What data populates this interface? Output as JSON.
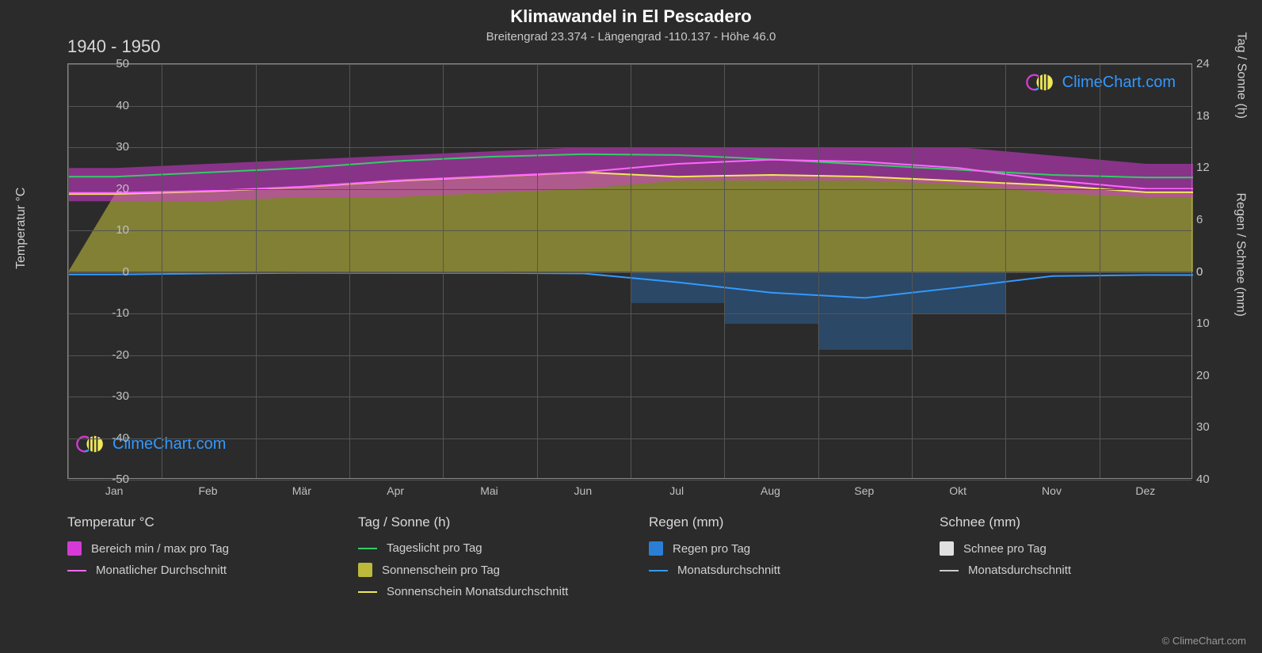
{
  "title": "Klimawandel in El Pescadero",
  "subtitle": "Breitengrad 23.374 - Längengrad -110.137 - Höhe 46.0",
  "period_label": "1940 - 1950",
  "copyright": "© ClimeChart.com",
  "watermark_text": "ClimeChart.com",
  "watermark_color": "#3399ff",
  "background_color": "#2b2b2b",
  "grid_color": "#555555",
  "text_color": "#d0d0d0",
  "chart": {
    "x_months": [
      "Jan",
      "Feb",
      "Mär",
      "Apr",
      "Mai",
      "Jun",
      "Jul",
      "Aug",
      "Sep",
      "Okt",
      "Nov",
      "Dez"
    ],
    "y_left": {
      "min": -50,
      "max": 50,
      "step": 10,
      "title": "Temperatur °C"
    },
    "y_right_top": {
      "min": 0,
      "max": 24,
      "step": 6,
      "title": "Tag / Sonne (h)"
    },
    "y_right_bot": {
      "min": 0,
      "max": 40,
      "step": 10,
      "title": "Regen / Schnee (mm)"
    },
    "series": {
      "temp_range": {
        "color_fill": "#d63ad6",
        "opacity": 0.55,
        "max": [
          25,
          26,
          27,
          28,
          29,
          30,
          30,
          30,
          30,
          30,
          28,
          26
        ],
        "min": [
          17,
          17,
          18,
          18,
          19,
          20,
          22,
          22,
          22,
          21,
          19,
          18
        ]
      },
      "temp_avg": {
        "color": "#ff66ff",
        "width": 2,
        "values": [
          19,
          19.5,
          20.5,
          22,
          23,
          24,
          26,
          27,
          26.5,
          25,
          22,
          20
        ]
      },
      "daylight": {
        "color": "#33cc66",
        "width": 2,
        "values_h": [
          11,
          11.5,
          12,
          12.8,
          13.3,
          13.6,
          13.5,
          13,
          12.4,
          11.8,
          11.2,
          10.9
        ]
      },
      "sunshine_fill": {
        "color_fill": "#bdb93a",
        "opacity": 0.6,
        "values_h": [
          9,
          9.3,
          9.8,
          10.5,
          11,
          11.5,
          11,
          11.2,
          11,
          10.5,
          10,
          9.2
        ]
      },
      "sunshine_avg": {
        "color": "#f0e85a",
        "width": 2,
        "values_h": [
          9,
          9.3,
          9.8,
          10.5,
          11,
          11.5,
          11,
          11.2,
          11,
          10.5,
          10,
          9.2
        ]
      },
      "rain_avg": {
        "color": "#3399ff",
        "width": 2,
        "values_mm": [
          0.5,
          0.3,
          0.2,
          0.2,
          0.2,
          0.3,
          2,
          4,
          5,
          3,
          0.8,
          0.6
        ]
      },
      "rain_bars": {
        "color_fill": "#2a7fd4",
        "opacity": 0.35,
        "months_with_rain": [
          6,
          7,
          8,
          9
        ],
        "max_mm": [
          6,
          10,
          15,
          8
        ]
      },
      "snow_avg": {
        "color": "#cccccc",
        "width": 2,
        "values_mm": [
          0,
          0,
          0,
          0,
          0,
          0,
          0,
          0,
          0,
          0,
          0,
          0
        ]
      }
    }
  },
  "legend": {
    "columns": [
      {
        "header": "Temperatur °C",
        "items": [
          {
            "type": "box",
            "color": "#d63ad6",
            "label": "Bereich min / max pro Tag"
          },
          {
            "type": "line",
            "color": "#ff66ff",
            "label": "Monatlicher Durchschnitt"
          }
        ]
      },
      {
        "header": "Tag / Sonne (h)",
        "items": [
          {
            "type": "line",
            "color": "#33cc66",
            "label": "Tageslicht pro Tag"
          },
          {
            "type": "box",
            "color": "#bdb93a",
            "label": "Sonnenschein pro Tag"
          },
          {
            "type": "line",
            "color": "#f0e85a",
            "label": "Sonnenschein Monatsdurchschnitt"
          }
        ]
      },
      {
        "header": "Regen (mm)",
        "items": [
          {
            "type": "box",
            "color": "#2a7fd4",
            "label": "Regen pro Tag"
          },
          {
            "type": "line",
            "color": "#3399ff",
            "label": "Monatsdurchschnitt"
          }
        ]
      },
      {
        "header": "Schnee (mm)",
        "items": [
          {
            "type": "box",
            "color": "#e0e0e0",
            "label": "Schnee pro Tag"
          },
          {
            "type": "line",
            "color": "#cccccc",
            "label": "Monatsdurchschnitt"
          }
        ]
      }
    ]
  }
}
